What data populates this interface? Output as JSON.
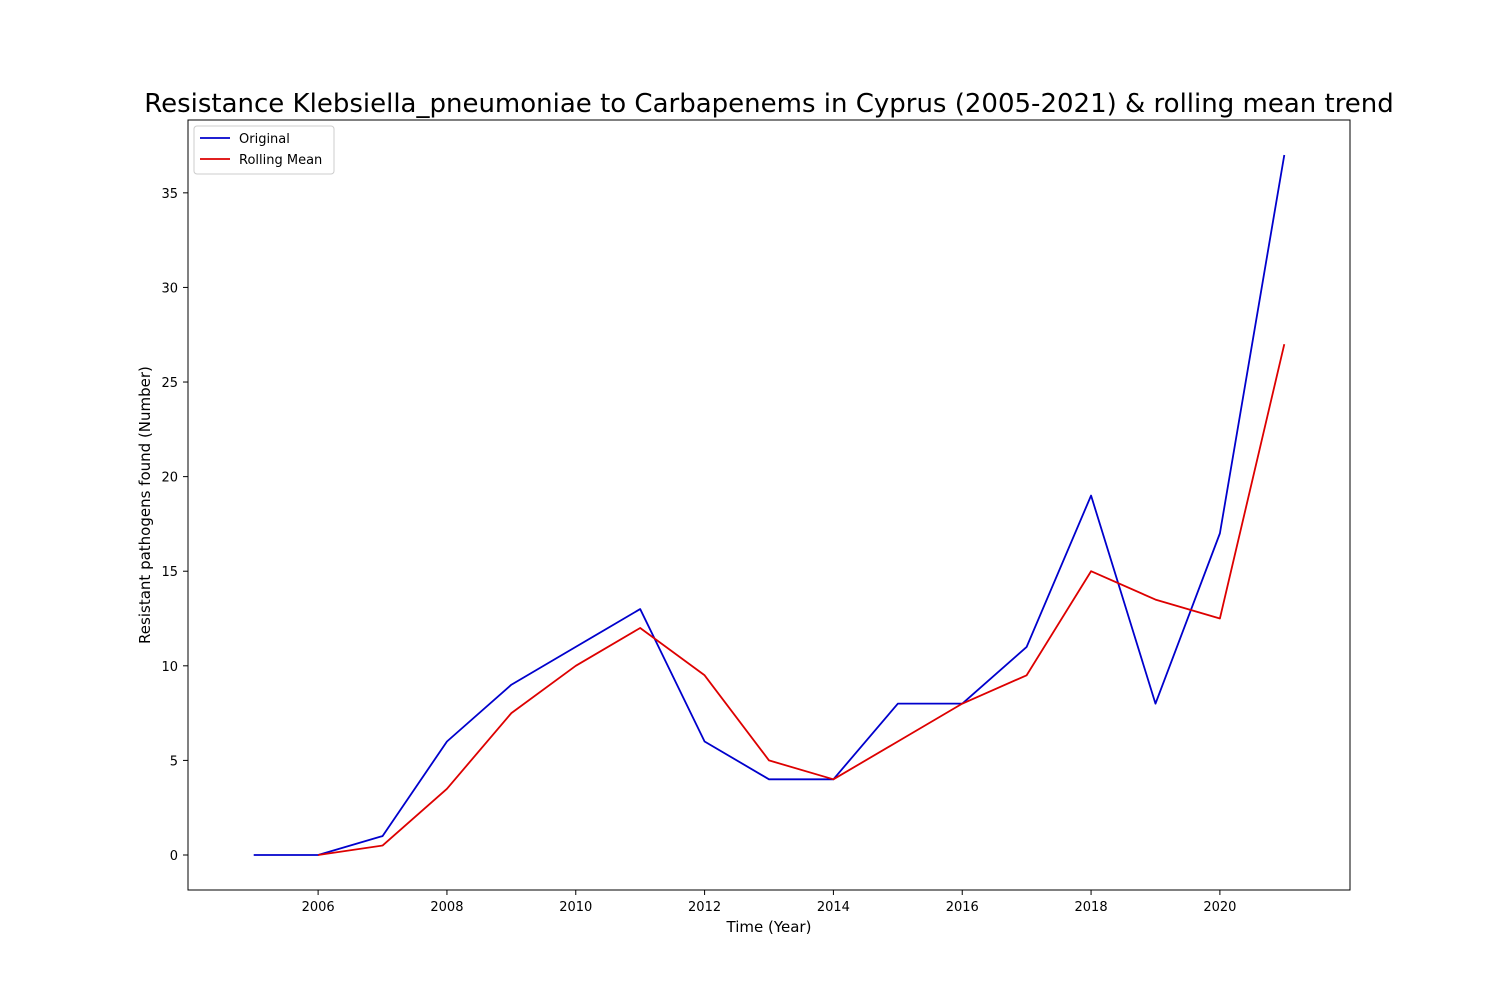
{
  "chart_data": {
    "type": "line",
    "title": "Resistance Klebsiella_pneumoniae to Carbapenems in Cyprus (2005-2021) & rolling mean trend",
    "xlabel": "Time (Year)",
    "ylabel": "Resistant pathogens found (Number)",
    "xlim": [
      2003.98,
      2022.02
    ],
    "ylim": [
      -1.85,
      38.85
    ],
    "x_ticks": [
      2006,
      2008,
      2010,
      2012,
      2014,
      2016,
      2018,
      2020
    ],
    "y_ticks": [
      0,
      5,
      10,
      15,
      20,
      25,
      30,
      35
    ],
    "grid": false,
    "legend_position": "top-left",
    "series": [
      {
        "name": "Original",
        "color": "#0000cc",
        "x": [
          2005,
          2006,
          2007,
          2008,
          2009,
          2010,
          2011,
          2012,
          2013,
          2014,
          2015,
          2016,
          2017,
          2018,
          2019,
          2020,
          2021
        ],
        "values": [
          0,
          0,
          1,
          6,
          9,
          11,
          13,
          6,
          4,
          4,
          8,
          8,
          11,
          19,
          8,
          17,
          37
        ]
      },
      {
        "name": "Rolling Mean",
        "color": "#dd0000",
        "x": [
          2006,
          2007,
          2008,
          2009,
          2010,
          2011,
          2012,
          2013,
          2014,
          2015,
          2016,
          2017,
          2018,
          2019,
          2020,
          2021
        ],
        "values": [
          0,
          0.5,
          3.5,
          7.5,
          10,
          12,
          9.5,
          5,
          4,
          6,
          8,
          9.5,
          15,
          13.5,
          12.5,
          27
        ]
      }
    ]
  }
}
